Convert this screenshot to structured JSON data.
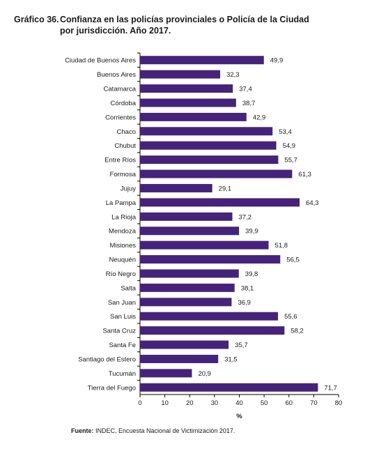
{
  "title": {
    "number": "Gráfico 36.",
    "line1": "Confianza en las policías provinciales o Policía de la Ciudad",
    "line2": "por jurisdicción. Año 2017."
  },
  "source": {
    "label": "Fuente:",
    "text": " INDEC, Encuesta Nacional de Victimización 2017."
  },
  "colors": {
    "bar": "#46237a",
    "axis": "#000000"
  },
  "chart_data": {
    "type": "bar",
    "orientation": "horizontal",
    "categories": [
      "Ciudad de Buenos Aires",
      "Buenos Aires",
      "Catamarca",
      "Córdoba",
      "Corrientes",
      "Chaco",
      "Chubut",
      "Entre Ríos",
      "Formosa",
      "Jujuy",
      "La Pampa",
      "La Rioja",
      "Mendoza",
      "Misiones",
      "Neuquén",
      "Río Negro",
      "Salta",
      "San Juan",
      "San Luis",
      "Santa Cruz",
      "Santa Fe",
      "Santiago del Estero",
      "Tucumán",
      "Tierra del Fuego"
    ],
    "values": [
      49.9,
      32.3,
      37.4,
      38.7,
      42.9,
      53.4,
      54.9,
      55.7,
      61.3,
      29.1,
      64.3,
      37.2,
      39.9,
      51.8,
      56.5,
      39.8,
      38.1,
      36.9,
      55.6,
      58.2,
      35.7,
      31.5,
      20.9,
      71.7
    ],
    "value_labels": [
      "49,9",
      "32,3",
      "37,4",
      "38,7",
      "42,9",
      "53,4",
      "54,9",
      "55,7",
      "61,3",
      "29,1",
      "64,3",
      "37,2",
      "39,9",
      "51,8",
      "56,5",
      "39,8",
      "38,1",
      "36,9",
      "55,6",
      "58,2",
      "35,7",
      "31,5",
      "20,9",
      "71,7"
    ],
    "xticks": [
      0,
      10,
      20,
      30,
      40,
      50,
      60,
      70,
      80
    ],
    "xlim": [
      0,
      80
    ],
    "xlabel": "%",
    "grid": false
  }
}
